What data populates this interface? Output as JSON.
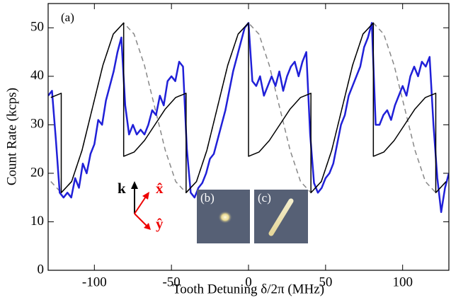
{
  "chart_data": {
    "type": "line",
    "y_label": "Count Rate (kcps)",
    "x_label": "Tooth Detuning δ/2π (MHz)",
    "annotations": [
      "(a)",
      "(b)",
      "(c)",
      "k",
      "x̂",
      "ŷ"
    ],
    "xlim": [
      -130,
      130
    ],
    "xticks": [
      -100,
      -50,
      0,
      50,
      100
    ],
    "ylim": [
      0,
      55
    ],
    "yticks": [
      0,
      10,
      20,
      30,
      40,
      50
    ],
    "series": [
      {
        "color": "#888888",
        "dashed": true,
        "width": 1.5,
        "x": [
          -128.25,
          -121.5,
          -114.75,
          -108,
          -101.25,
          -94.5,
          -87.75,
          -81,
          -74.25,
          -67.5,
          -60.75,
          -54,
          -47.25,
          -40.5,
          -33.75,
          -27,
          -20.25,
          -13.5,
          -6.75,
          0,
          6.75,
          13.5,
          20.25,
          27,
          33.75,
          40.5,
          47.25,
          54,
          60.75,
          67.5,
          74.25,
          81,
          87.75,
          94.5,
          101.25,
          108,
          114.75,
          121.5,
          128.25
        ],
        "values": [
          18.3,
          16,
          18.3,
          24.75,
          33.5,
          42.25,
          48.7,
          51,
          48.7,
          42.25,
          33.5,
          24.75,
          18.3,
          16,
          18.3,
          24.75,
          33.5,
          42.25,
          48.7,
          51,
          48.7,
          42.25,
          33.5,
          24.75,
          18.3,
          16,
          18.3,
          24.75,
          33.5,
          42.25,
          48.7,
          51,
          48.7,
          42.25,
          33.5,
          24.75,
          18.3,
          16,
          18.3
        ]
      },
      {
        "color": "#2020d8",
        "dashed": false,
        "width": 2.5,
        "x": [
          -130,
          -127.5,
          -125,
          -122.5,
          -120,
          -117.5,
          -115,
          -112.5,
          -110,
          -107.5,
          -105,
          -102.5,
          -100,
          -97.5,
          -95,
          -92.5,
          -90,
          -87.5,
          -85,
          -82.5,
          -80,
          -77.5,
          -75,
          -72.5,
          -70,
          -67.5,
          -65,
          -62.5,
          -60,
          -57.5,
          -55,
          -52.5,
          -50,
          -47.5,
          -45,
          -42.5,
          -40,
          -37.5,
          -35,
          -32.5,
          -30,
          -27.5,
          -25,
          -22.5,
          -20,
          -17.5,
          -15,
          -12.5,
          -10,
          -7.5,
          -5,
          -2.5,
          0,
          2.5,
          5,
          7.5,
          10,
          12.5,
          15,
          17.5,
          20,
          22.5,
          25,
          27.5,
          30,
          32.5,
          35,
          37.5,
          40,
          42.5,
          45,
          47.5,
          50,
          52.5,
          55,
          57.5,
          60,
          62.5,
          65,
          67.5,
          70,
          72.5,
          75,
          77.5,
          80,
          82.5,
          85,
          87.5,
          90,
          92.5,
          95,
          97.5,
          100,
          102.5,
          105,
          107.5,
          110,
          112.5,
          115,
          117.5,
          120,
          122.5,
          125,
          127.5,
          130
        ],
        "values": [
          36,
          37,
          27,
          16,
          15,
          16,
          15,
          19,
          17,
          22,
          20,
          24,
          26,
          31,
          30,
          35,
          38,
          41,
          45,
          48,
          34,
          28,
          30,
          28,
          29,
          28,
          30,
          33,
          32,
          36,
          34,
          39,
          40,
          39,
          43,
          42,
          25,
          16,
          15,
          17,
          18,
          20,
          23,
          24,
          27,
          30,
          33,
          37,
          41,
          44,
          47,
          50,
          51,
          39,
          38,
          40,
          36,
          38,
          40,
          38,
          41,
          37,
          40,
          42,
          43,
          40,
          43,
          45,
          28,
          18,
          16,
          17,
          19,
          20,
          22,
          26,
          30,
          32,
          36,
          38,
          40,
          42,
          46,
          48,
          51,
          30,
          30,
          32,
          33,
          31,
          34,
          36,
          38,
          36,
          40,
          42,
          40,
          43,
          42,
          44,
          30,
          19,
          12,
          17,
          20
        ]
      },
      {
        "color": "#000000",
        "dashed": false,
        "width": 1.5,
        "x": [
          -128.25,
          -121.5,
          -121.5,
          -114.75,
          -108,
          -101.25,
          -94.5,
          -87.75,
          -81,
          -81,
          -74.25,
          -67.5,
          -60.75,
          -54,
          -47.25,
          -40.5,
          -40.5,
          -33.75,
          -27,
          -20.25,
          -13.5,
          -6.75,
          0,
          0,
          6.75,
          13.5,
          20.25,
          27,
          33.75,
          40.5,
          40.5,
          47.25,
          54,
          60.75,
          67.5,
          74.25,
          81,
          81,
          87.75,
          94.5,
          101.25,
          108,
          114.75,
          121.5,
          121.5,
          128.25
        ],
        "values": [
          35.63,
          36.5,
          16,
          18.3,
          24.75,
          33.5,
          42.25,
          48.7,
          51,
          23.5,
          24.37,
          26.75,
          30,
          33.25,
          35.63,
          36.5,
          16,
          18.3,
          24.75,
          33.5,
          42.25,
          48.7,
          51,
          23.5,
          24.37,
          26.75,
          30,
          33.25,
          35.63,
          36.5,
          16,
          18.3,
          24.75,
          33.5,
          42.25,
          48.7,
          51,
          23.5,
          24.37,
          26.75,
          30,
          33.25,
          35.63,
          36.5,
          16,
          18.3
        ]
      }
    ]
  }
}
